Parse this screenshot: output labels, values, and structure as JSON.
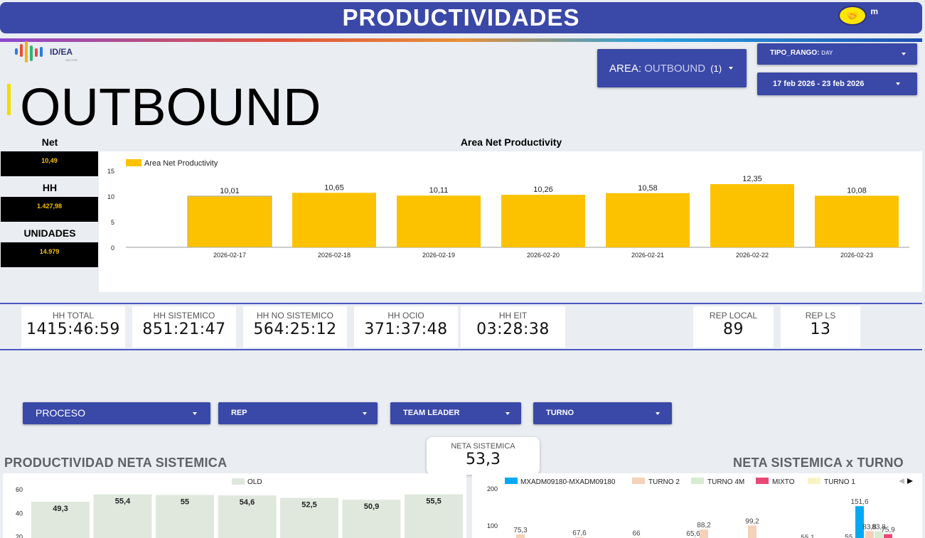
{
  "header": {
    "title": "PRODUCTIVIDADES",
    "brand_icon": "handshake-icon",
    "brand_letter": "m"
  },
  "logo": {
    "text": "ID/EA",
    "sub": "SECTOR"
  },
  "page_title": "OUTBOUND",
  "filters_top": {
    "area_label": "AREA:",
    "area_value": "OUTBOUND",
    "area_count": "(1)",
    "tipo_label": "TIPO_RANGO:",
    "tipo_value": "DAY",
    "date_range": "17 feb 2026 - 23 feb 2026"
  },
  "kpis": [
    {
      "label": "Net",
      "value": "10,49"
    },
    {
      "label": "HH",
      "value": "1.427,98"
    },
    {
      "label": "UNIDADES",
      "value": "14.979"
    }
  ],
  "stats": [
    {
      "label": "HH TOTAL",
      "value": "1415:46:59"
    },
    {
      "label": "HH SISTEMICO",
      "value": "851:21:47"
    },
    {
      "label": "HH NO SISTEMICO",
      "value": "564:25:12"
    },
    {
      "label": "HH OCIO",
      "value": "371:37:48"
    },
    {
      "label": "HH EIT",
      "value": "03:28:38"
    },
    {
      "label": "REP LOCAL",
      "value": "89"
    },
    {
      "label": "REP LS",
      "value": "13"
    }
  ],
  "filters_bottom": [
    {
      "label": "PROCESO"
    },
    {
      "label": "REP"
    },
    {
      "label": "TEAM LEADER"
    },
    {
      "label": "TURNO"
    }
  ],
  "section_left_title": "PRODUCTIVIDAD NETA SISTEMICA",
  "section_right_title": "NETA SISTEMICA x TURNO",
  "neta_card": {
    "label": "NETA SISTEMICA",
    "value": "53,3"
  },
  "colors": {
    "accent": "#3a48a8",
    "bar": "#fcc200",
    "old_bar": "#e0e8de",
    "legend_blue": "#03a9f4",
    "turno2": "#f4d1b9",
    "turno4m": "#d6ecd1",
    "mixto": "#e94876",
    "turno1": "#f8f3c7"
  },
  "chart_data": [
    {
      "type": "bar",
      "title": "Area Net Productivity",
      "legend": [
        "Area Net Productivity"
      ],
      "categories": [
        "2026-02-17",
        "2026-02-18",
        "2026-02-19",
        "2026-02-20",
        "2026-02-21",
        "2026-02-22",
        "2026-02-23"
      ],
      "values": [
        10.01,
        10.65,
        10.11,
        10.26,
        10.58,
        12.35,
        10.08
      ],
      "labels": [
        "10,01",
        "10,65",
        "10,11",
        "10,26",
        "10,58",
        "12,35",
        "10,08"
      ],
      "yticks": [
        "15",
        "10",
        "5",
        "0"
      ],
      "ylim": [
        0,
        15
      ]
    },
    {
      "type": "bar",
      "legend": [
        "OLD"
      ],
      "values": [
        49.3,
        55.4,
        55,
        54.6,
        52.5,
        50.9,
        55.5
      ],
      "labels": [
        "49,3",
        "55,4",
        "55",
        "54,6",
        "52,5",
        "50,9",
        "55,5"
      ],
      "yticks": [
        "60",
        "40",
        "20"
      ],
      "ylim": [
        0,
        60
      ]
    },
    {
      "type": "bar",
      "legend": [
        "MXADM09180-MXADM09180",
        "TURNO 2",
        "TURNO 4M",
        "MIXTO",
        "TURNO 1"
      ],
      "yticks": [
        "200",
        "100"
      ],
      "visible_labels": [
        "75,3",
        "67,6",
        "66",
        "65,6",
        "88,2",
        "99,2",
        "55,1",
        "55,7",
        "151,6",
        "83,8",
        "83,8",
        "75,9"
      ]
    }
  ]
}
